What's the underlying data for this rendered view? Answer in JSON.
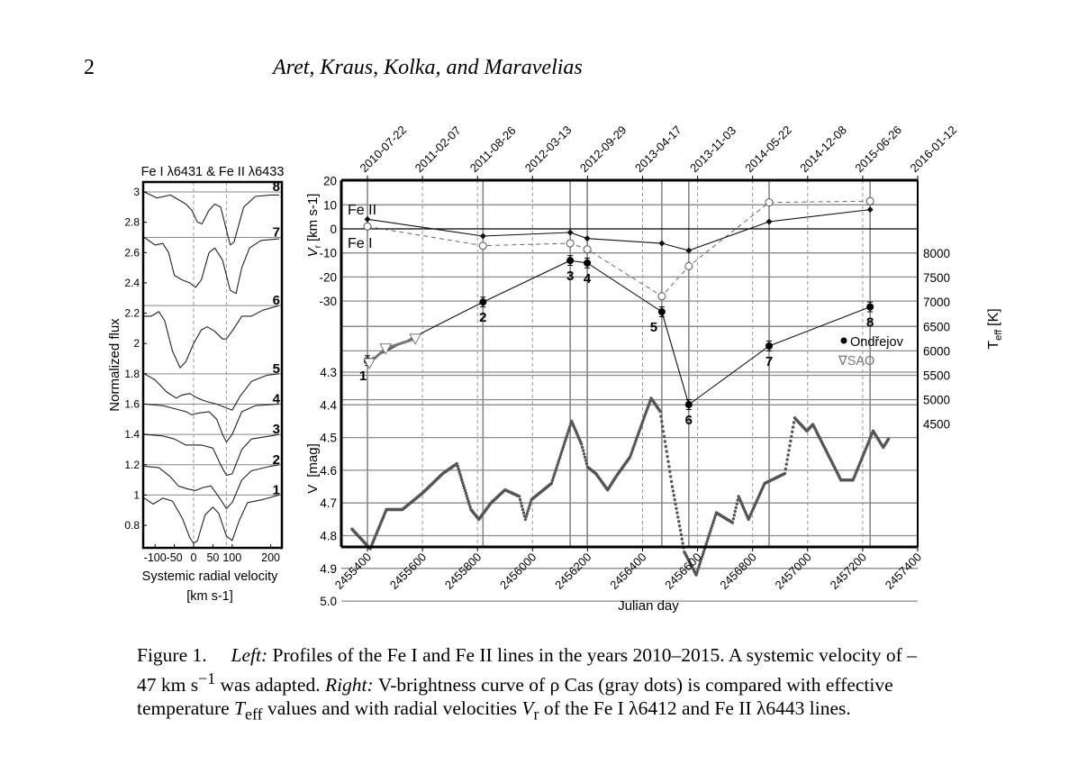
{
  "header": {
    "page_number": "2",
    "authors": "Aret, Kraus, Kolka, and Maravelias"
  },
  "caption": {
    "label": "Figure 1.",
    "left_word": "Left:",
    "part1": " Profiles of the Fe I and Fe II lines in the years 2010–2015. A systemic velocity of –47 km s",
    "sup": "−1",
    "part2": " was adapted. ",
    "right_word": "Right:",
    "part3": " V-brightness curve of ρ Cas (gray dots) is compared with effective temperature ",
    "teff": "T",
    "teff_sub": "eff",
    "part4": " values and with radial velocities ",
    "vr": "V",
    "vr_sub": "r",
    "part5": " of the Fe I λ6412 and Fe II λ6443 lines."
  },
  "chart_data": [
    {
      "type": "line",
      "title": "Fe I λ6431 & Fe II λ6433",
      "xlabel": "Systemic radial velocity",
      "xlabel_unit": "[km s-1]",
      "ylabel": "Normalized flux",
      "xlim": [
        -131,
        229
      ],
      "ylim": [
        0.66,
        3.05
      ],
      "xticks": [
        -100,
        -50,
        0,
        50,
        100,
        200
      ],
      "yticks": [
        3,
        2.8,
        2.6,
        2.4,
        2.2,
        2,
        1.8,
        1.6,
        1.4,
        1.2,
        1,
        0.8
      ],
      "ytick_labels": [
        "3",
        "2.8",
        "2.6",
        "2.4",
        "2.2",
        "2",
        "1.8",
        "1.6",
        "1.4",
        "1.2",
        "1",
        "0.8"
      ],
      "reference_velocities": [
        0,
        85
      ],
      "series": [
        {
          "name": "8",
          "continuum": 3.0,
          "v": [
            -128,
            -95,
            -60,
            -20,
            -5,
            10,
            22,
            40,
            55,
            70,
            85,
            95,
            105,
            130,
            160,
            200,
            222
          ],
          "flux": [
            3.0,
            2.96,
            2.98,
            2.92,
            2.88,
            2.8,
            2.79,
            2.88,
            2.92,
            2.9,
            2.75,
            2.65,
            2.67,
            2.9,
            2.97,
            2.98,
            2.98
          ]
        },
        {
          "name": "7",
          "continuum": 2.7,
          "v": [
            -128,
            -100,
            -80,
            -65,
            -50,
            -30,
            -10,
            5,
            20,
            40,
            55,
            75,
            95,
            110,
            125,
            145,
            175,
            222
          ],
          "flux": [
            2.7,
            2.65,
            2.66,
            2.6,
            2.45,
            2.42,
            2.4,
            2.37,
            2.42,
            2.6,
            2.63,
            2.55,
            2.35,
            2.33,
            2.5,
            2.63,
            2.68,
            2.69
          ]
        },
        {
          "name": "6",
          "continuum": 2.25,
          "v": [
            -128,
            -110,
            -90,
            -75,
            -55,
            -35,
            -20,
            0,
            20,
            35,
            55,
            75,
            85,
            105,
            125,
            150,
            180,
            222
          ],
          "flux": [
            2.18,
            2.18,
            2.21,
            2.15,
            1.95,
            1.84,
            1.88,
            2.0,
            2.09,
            2.11,
            2.08,
            2.03,
            2.03,
            2.1,
            2.18,
            2.18,
            2.22,
            2.25
          ]
        },
        {
          "name": "5",
          "continuum": 1.8,
          "v": [
            -128,
            -100,
            -70,
            -45,
            -30,
            -10,
            10,
            30,
            60,
            90,
            100,
            120,
            150,
            190,
            222
          ],
          "flux": [
            1.8,
            1.76,
            1.68,
            1.64,
            1.66,
            1.67,
            1.64,
            1.62,
            1.6,
            1.57,
            1.56,
            1.65,
            1.75,
            1.79,
            1.8
          ]
        },
        {
          "name": "4",
          "continuum": 1.6,
          "v": [
            -128,
            -80,
            -50,
            -20,
            -5,
            10,
            40,
            60,
            75,
            85,
            100,
            125,
            160,
            222
          ],
          "flux": [
            1.6,
            1.59,
            1.57,
            1.55,
            1.53,
            1.54,
            1.55,
            1.5,
            1.4,
            1.35,
            1.4,
            1.55,
            1.59,
            1.6
          ]
        },
        {
          "name": "3",
          "continuum": 1.4,
          "v": [
            -128,
            -80,
            -50,
            -20,
            20,
            50,
            70,
            85,
            100,
            125,
            150,
            200,
            222
          ],
          "flux": [
            1.4,
            1.39,
            1.37,
            1.33,
            1.33,
            1.31,
            1.2,
            1.13,
            1.14,
            1.3,
            1.37,
            1.39,
            1.4
          ]
        },
        {
          "name": "2",
          "continuum": 1.2,
          "v": [
            -128,
            -90,
            -60,
            -40,
            -15,
            5,
            25,
            45,
            70,
            85,
            100,
            125,
            150,
            200,
            222
          ],
          "flux": [
            1.19,
            1.18,
            1.12,
            1.06,
            1.04,
            1.03,
            1.05,
            1.06,
            0.97,
            0.91,
            0.95,
            1.1,
            1.16,
            1.19,
            1.2
          ]
        },
        {
          "name": "1",
          "continuum": 1.0,
          "v": [
            -128,
            -105,
            -80,
            -55,
            -30,
            -10,
            0,
            10,
            30,
            50,
            65,
            85,
            100,
            118,
            140,
            180,
            222
          ],
          "flux": [
            0.98,
            0.94,
            0.98,
            0.96,
            0.85,
            0.72,
            0.68,
            0.7,
            0.87,
            0.92,
            0.88,
            0.73,
            0.7,
            0.83,
            0.95,
            0.97,
            1.0
          ]
        }
      ]
    },
    {
      "type": "scatter",
      "xlabel": "Julian day",
      "xlim": [
        2455305,
        2457400
      ],
      "xticks": [
        2455400,
        2455600,
        2455800,
        2456000,
        2456200,
        2456400,
        2456600,
        2456800,
        2457000,
        2457200,
        2457400
      ],
      "xtick_labels": [
        "2455400",
        "2455600",
        "2455800",
        "2456000",
        "2456200",
        "2456400",
        "2456600",
        "2456800",
        "2457000",
        "2457200",
        "2457400"
      ],
      "top_xtick_labels": [
        "2010-07-22",
        "2011-02-07",
        "2011-08-26",
        "2012-03-13",
        "2012-09-29",
        "2013-04-17",
        "2013-11-03",
        "2014-05-22",
        "2014-12-08",
        "2015-06-26",
        "2016-01-12"
      ],
      "grid": true,
      "vr_axis": {
        "label": "V",
        "label_sub": "r",
        "unit": "[km s-1]",
        "ticks": [
          20,
          10,
          0,
          -10,
          -20,
          -30
        ],
        "tick_labels": [
          "20",
          "10",
          "0",
          "-10",
          "-20",
          "-30"
        ],
        "ylim": [
          20,
          -30
        ]
      },
      "v_axis": {
        "label": "V",
        "unit": "[mag]",
        "ticks": [
          4.3,
          4.4,
          4.5,
          4.6,
          4.7,
          4.8,
          4.9,
          5.0
        ],
        "tick_labels": [
          "4.3",
          "4.4",
          "4.5",
          "4.6",
          "4.7",
          "4.8",
          "4.9",
          "5.0"
        ],
        "ylim": [
          4.3,
          5.0
        ],
        "inverted": true
      },
      "teff_axis": {
        "label": "T",
        "label_sub": "eff",
        "unit": "[K]",
        "ticks": [
          8000,
          7500,
          7000,
          6500,
          6000,
          5500,
          5000,
          4500
        ],
        "tick_labels": [
          "8000",
          "7500",
          "7000",
          "6500",
          "6000",
          "5500",
          "5000",
          "4500"
        ],
        "side": "right"
      },
      "line_labels": {
        "fe2": "Fe II",
        "fe1": "Fe I"
      },
      "legend": {
        "placement": "right",
        "ondrejov": "Ondřejov",
        "sao": "SAO",
        "sao_symbol": "∇"
      },
      "colors": {
        "lightcurve": "#555555",
        "sao": "#777777",
        "ondrejov": "#000000"
      },
      "epochs": {
        "labels": [
          "1",
          "2",
          "3",
          "4",
          "5",
          "6",
          "7",
          "8"
        ],
        "jd": [
          2455400,
          2455820,
          2456137,
          2456199,
          2456470,
          2456568,
          2456860,
          2457227
        ]
      },
      "series": [
        {
          "name": "Fe II",
          "axis": "vr",
          "marker": "filled-diamond",
          "style": "solid",
          "y": [
            4,
            -3,
            -1.5,
            -4,
            -6,
            -9,
            3,
            8
          ]
        },
        {
          "name": "Fe I",
          "axis": "vr",
          "marker": "open-circle",
          "style": "dashed",
          "y": [
            1,
            -7,
            -6,
            -8.5,
            -28,
            -15.5,
            11,
            11.5
          ]
        },
        {
          "name": "Ondřejov",
          "axis": "teff",
          "marker": "filled-circle",
          "errorbar": 100,
          "y": [
            5800,
            7000,
            7850,
            7800,
            6800,
            4900,
            6100,
            6900
          ]
        },
        {
          "name": "SAO",
          "axis": "teff",
          "marker": "open-triangle-down",
          "x": [
            2455407,
            2455466,
            2455574
          ],
          "y": [
            5750,
            6050,
            6250
          ]
        },
        {
          "name": "V",
          "axis": "v",
          "marker": "gray-dots",
          "x": [
            2455344,
            2455410,
            2455469,
            2455527,
            2455600,
            2455674,
            2455725,
            2455776,
            2455805,
            2455849,
            2455900,
            2455952,
            2455974,
            2455996,
            2456069,
            2456142,
            2456178,
            2456200,
            2456230,
            2456273,
            2456303,
            2456354,
            2456431,
            2456464,
            2456508,
            2456552,
            2456595,
            2456668,
            2456727,
            2456749,
            2456785,
            2456844,
            2456917,
            2456953,
            2456997,
            2457019,
            2457121,
            2457165,
            2457238,
            2457275,
            2457297
          ],
          "y": [
            4.78,
            4.84,
            4.72,
            4.72,
            4.67,
            4.61,
            4.58,
            4.72,
            4.75,
            4.7,
            4.66,
            4.68,
            4.75,
            4.69,
            4.64,
            4.45,
            4.52,
            4.59,
            4.61,
            4.66,
            4.62,
            4.56,
            4.38,
            4.42,
            4.65,
            4.85,
            4.92,
            4.73,
            4.76,
            4.68,
            4.75,
            4.64,
            4.61,
            4.44,
            4.48,
            4.46,
            4.63,
            4.63,
            4.48,
            4.53,
            4.5
          ]
        }
      ]
    }
  ]
}
